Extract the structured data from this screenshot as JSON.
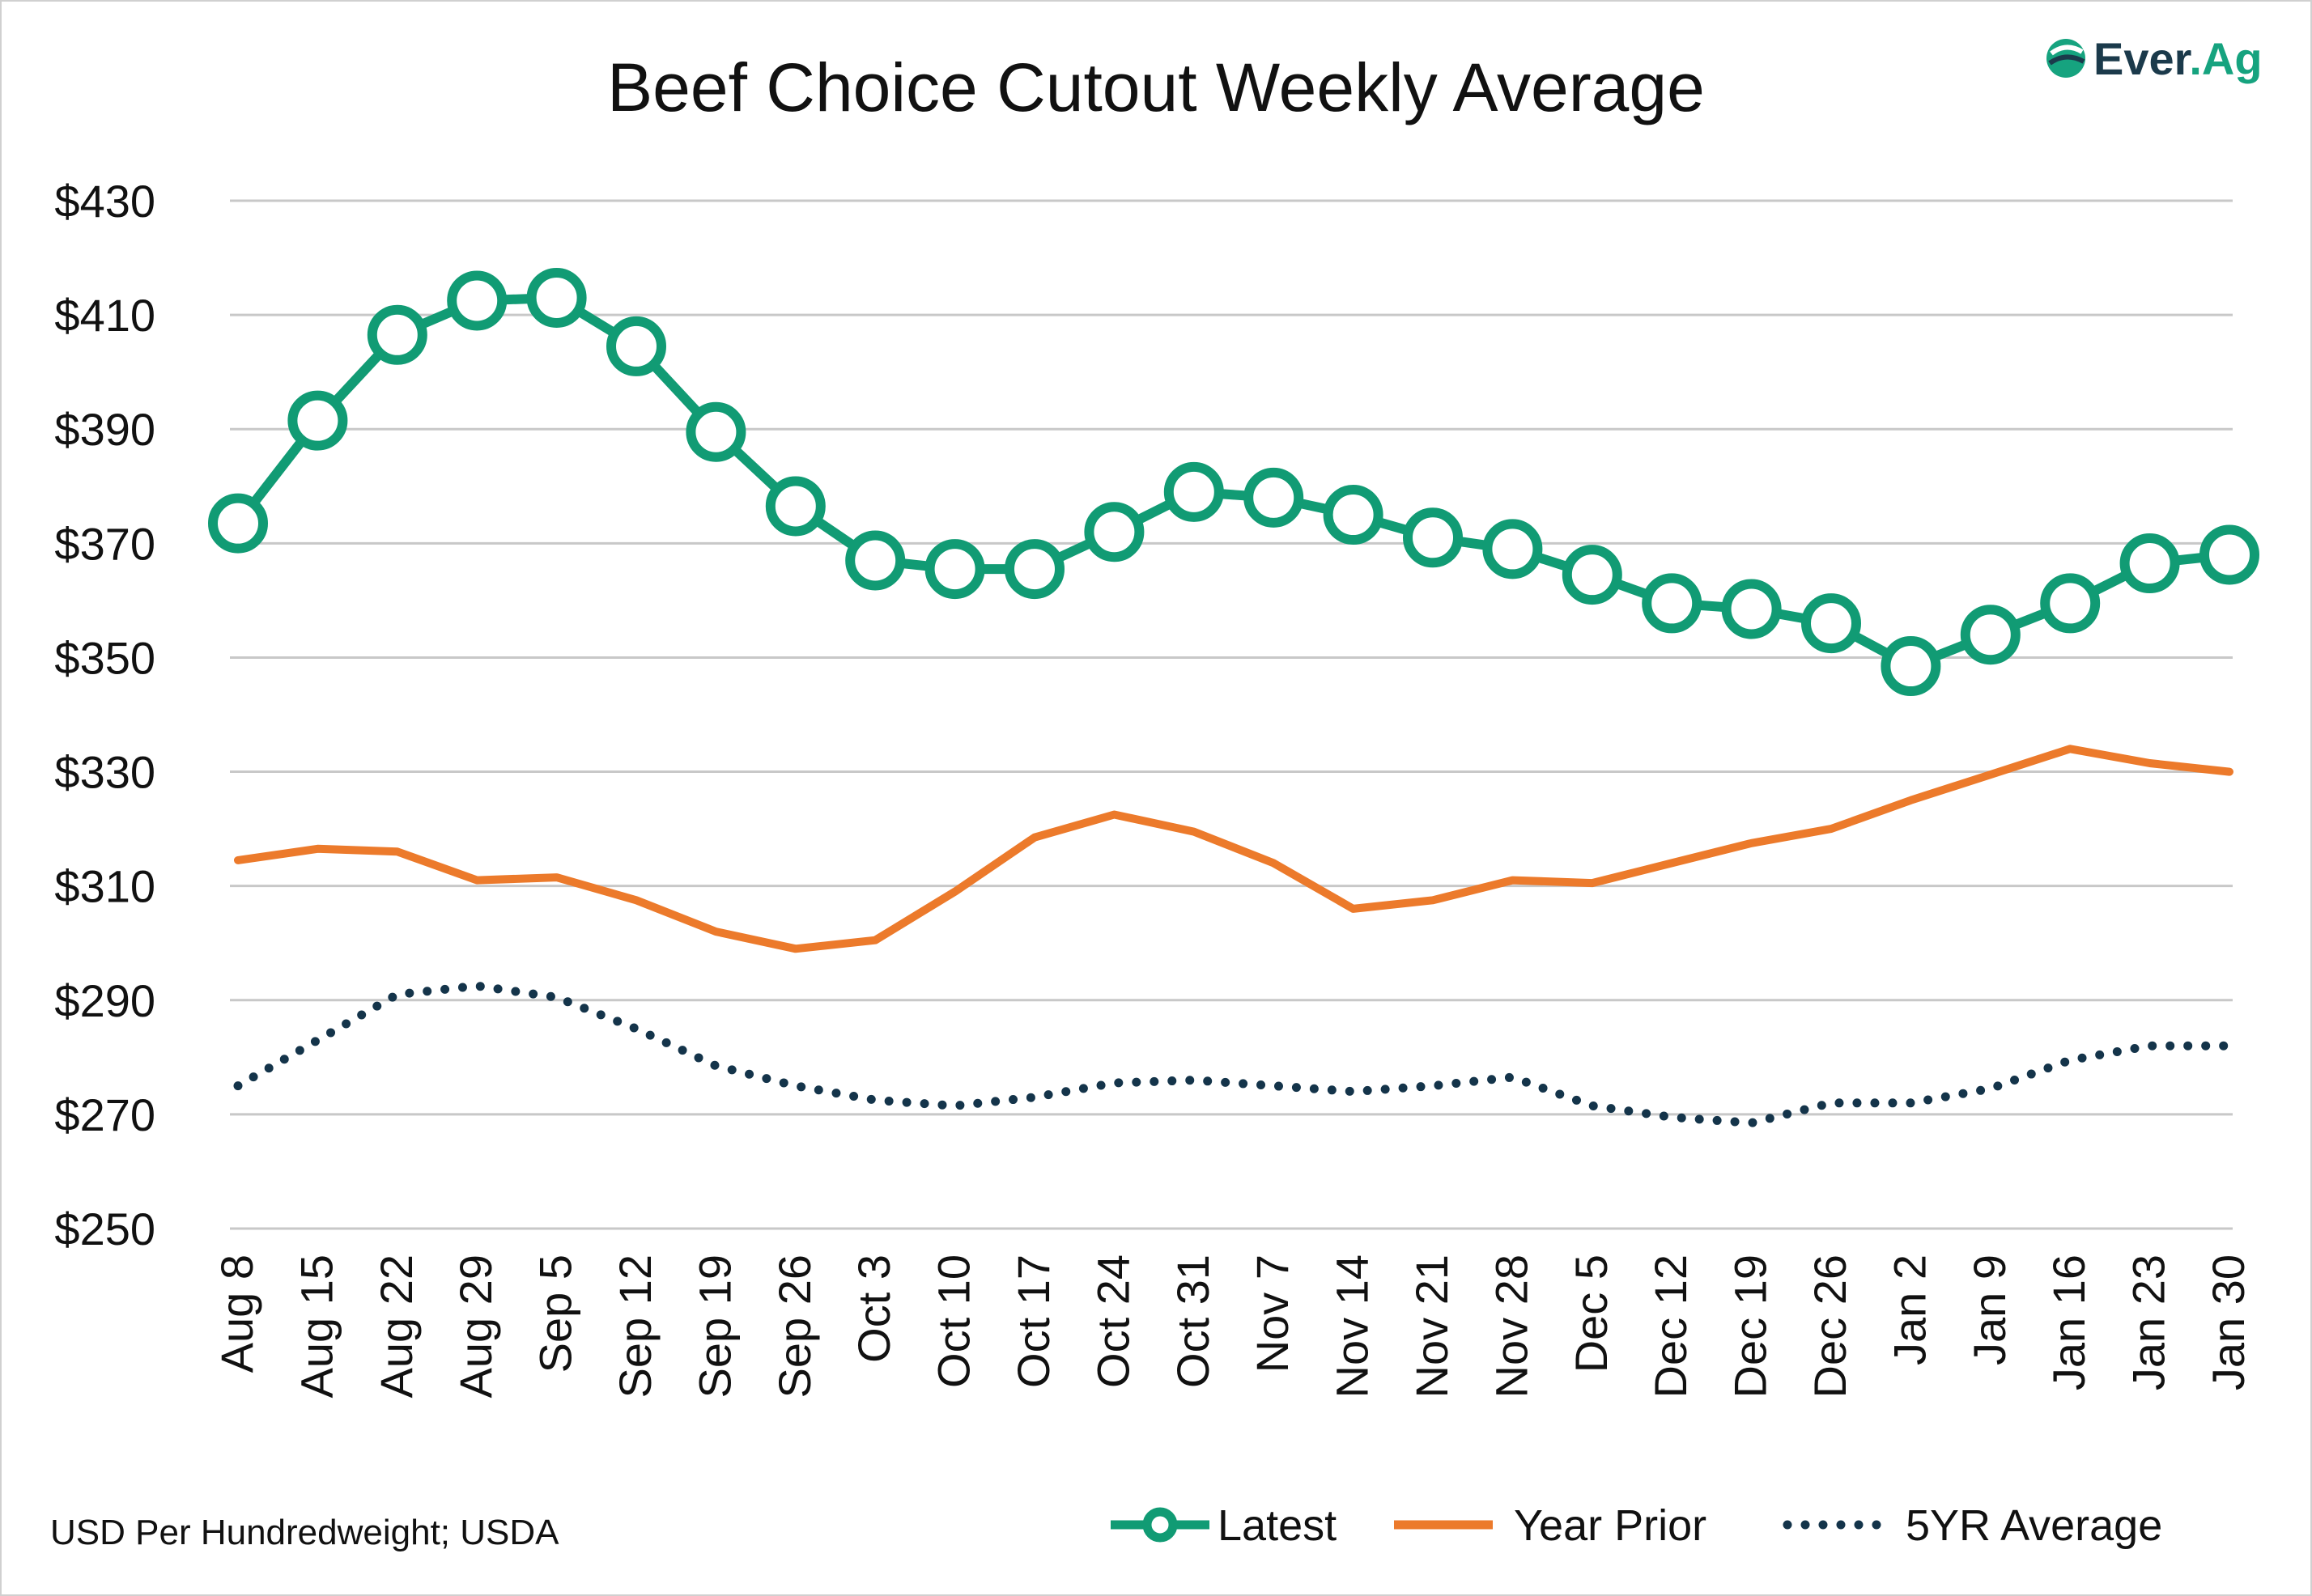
{
  "brand": {
    "logo_text_main": "Ever",
    "logo_text_dot": ".",
    "logo_text_end": "Ag"
  },
  "colors": {
    "latest": "#119b74",
    "year_prior": "#ec7a2b",
    "five_yr": "#14344a",
    "grid": "#c8c8c8",
    "logo_dark": "#1b3a4b",
    "logo_green": "#16a37f"
  },
  "source_note": "USD Per Hundredweight; USDA",
  "chart_data": {
    "type": "line",
    "title": "Beef Choice Cutout Weekly Average",
    "xlabel": "",
    "ylabel": "",
    "ylim": [
      250,
      430
    ],
    "y_ticks": [
      430,
      410,
      390,
      370,
      350,
      330,
      310,
      290,
      270,
      250
    ],
    "y_tick_labels": [
      "$430",
      "$410",
      "$390",
      "$370",
      "$350",
      "$330",
      "$310",
      "$290",
      "$270",
      "$250"
    ],
    "grid": true,
    "legend_position": "bottom-right",
    "categories": [
      "Aug 8",
      "Aug 15",
      "Aug 22",
      "Aug 29",
      "Sep 5",
      "Sep 12",
      "Sep 19",
      "Sep 26",
      "Oct 3",
      "Oct 10",
      "Oct 17",
      "Oct 24",
      "Oct 31",
      "Nov 7",
      "Nov 14",
      "Nov 21",
      "Nov 28",
      "Dec 5",
      "Dec 12",
      "Dec 19",
      "Dec 26",
      "Jan 2",
      "Jan 9",
      "Jan 16",
      "Jan 23",
      "Jan 30"
    ],
    "series": [
      {
        "name": "Latest",
        "style": "line-markers",
        "values": [
          373.5,
          391.5,
          406.5,
          412.5,
          413,
          404.5,
          389.5,
          376.5,
          367,
          365.5,
          365.5,
          372,
          379,
          378,
          375,
          371,
          369,
          364.5,
          359.5,
          358.5,
          356,
          348.5,
          354,
          359.5,
          366.5,
          368
        ]
      },
      {
        "name": "Year Prior",
        "style": "line",
        "values": [
          314.5,
          316.5,
          316,
          311,
          311.5,
          307.5,
          302,
          299,
          300.5,
          309,
          318.5,
          322.5,
          319.5,
          314,
          306,
          307.5,
          311,
          310.5,
          314,
          317.5,
          320,
          325,
          329.5,
          334,
          331.5,
          330
        ]
      },
      {
        "name": "5YR Average",
        "style": "dotted",
        "values": [
          275,
          283,
          291,
          292.5,
          290.5,
          285,
          278.5,
          275,
          272.5,
          271.5,
          273,
          275.5,
          276,
          275,
          274,
          275,
          276.5,
          271.5,
          269.5,
          268.5,
          272,
          272,
          274.5,
          279.5,
          282,
          282
        ]
      }
    ]
  }
}
